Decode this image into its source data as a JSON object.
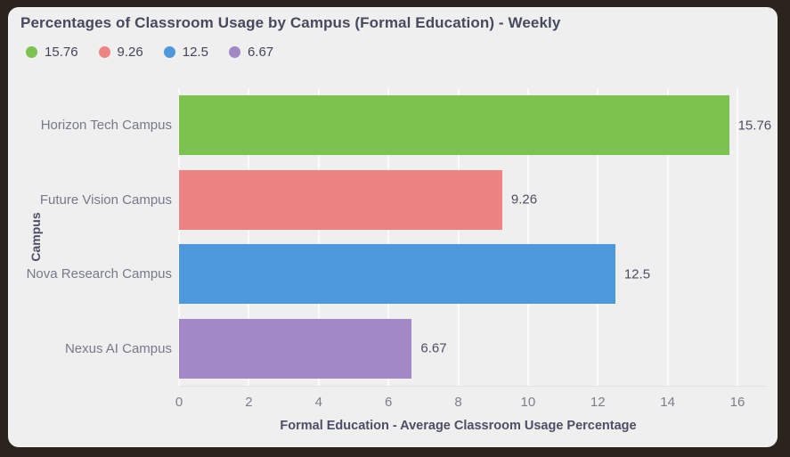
{
  "chart_data": {
    "type": "bar",
    "orientation": "horizontal",
    "title": "Percentages of Classroom Usage by Campus (Formal Education) - Weekly",
    "categories": [
      "Horizon Tech Campus",
      "Future Vision Campus",
      "Nova Research Campus",
      "Nexus AI Campus"
    ],
    "values": [
      15.76,
      9.26,
      12.5,
      6.67
    ],
    "value_labels": [
      "15.76",
      "9.26",
      "12.5",
      "6.67"
    ],
    "bar_colors": [
      "#7cc24e",
      "#ee8383",
      "#4d99db",
      "#a388c7"
    ],
    "xlabel": "Formal Education - Average Classroom Usage Percentage",
    "ylabel": "Campus",
    "xlim": [
      0,
      16
    ],
    "xticks": [
      0,
      2,
      4,
      6,
      8,
      10,
      12,
      14,
      16
    ],
    "grid": "vertical",
    "legend": {
      "position": "top-left",
      "items": [
        {
          "label": "15.76",
          "color": "#7cc24e"
        },
        {
          "label": "9.26",
          "color": "#ee8383"
        },
        {
          "label": "12.5",
          "color": "#4d99db"
        },
        {
          "label": "6.67",
          "color": "#a388c7"
        }
      ]
    }
  }
}
